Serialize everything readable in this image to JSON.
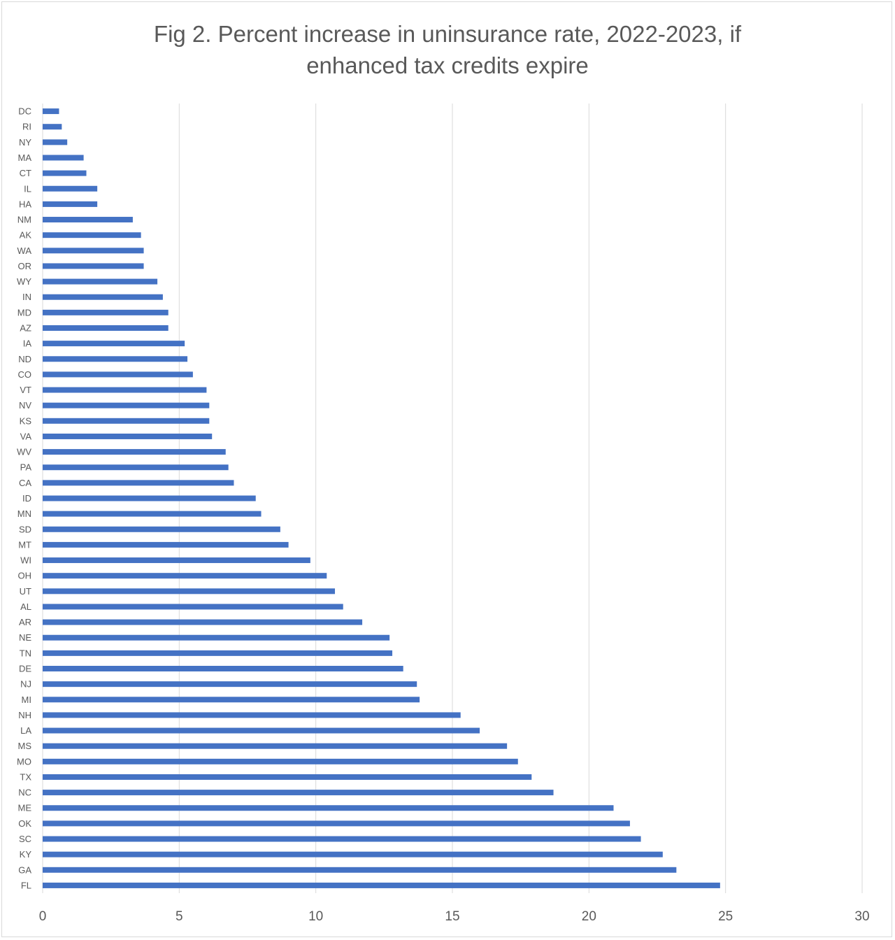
{
  "chart_data": {
    "type": "bar",
    "orientation": "horizontal",
    "title_lines": [
      "Fig 2. Percent increase in uninsurance rate, 2022-2023, if",
      "enhanced tax credits expire"
    ],
    "xlabel": "",
    "ylabel": "",
    "xlim": [
      0,
      30
    ],
    "xticks": [
      0,
      5,
      10,
      15,
      20,
      25,
      30
    ],
    "grid": "vertical",
    "legend": "none",
    "bar_color": "#4472c4",
    "categories": [
      "DC",
      "RI",
      "NY",
      "MA",
      "CT",
      "IL",
      "HA",
      "NM",
      "AK",
      "WA",
      "OR",
      "WY",
      "IN",
      "MD",
      "AZ",
      "IA",
      "ND",
      "CO",
      "VT",
      "NV",
      "KS",
      "VA",
      "WV",
      "PA",
      "CA",
      "ID",
      "MN",
      "SD",
      "MT",
      "WI",
      "OH",
      "UT",
      "AL",
      "AR",
      "NE",
      "TN",
      "DE",
      "NJ",
      "MI",
      "NH",
      "LA",
      "MS",
      "MO",
      "TX",
      "NC",
      "ME",
      "OK",
      "SC",
      "KY",
      "GA",
      "FL"
    ],
    "values": [
      0.6,
      0.7,
      0.9,
      1.5,
      1.6,
      2.0,
      2.0,
      3.3,
      3.6,
      3.7,
      3.7,
      4.2,
      4.4,
      4.6,
      4.6,
      5.2,
      5.3,
      5.5,
      6.0,
      6.1,
      6.1,
      6.2,
      6.7,
      6.8,
      7.0,
      7.8,
      8.0,
      8.7,
      9.0,
      9.8,
      10.4,
      10.7,
      11.0,
      11.7,
      12.7,
      12.8,
      13.2,
      13.7,
      13.8,
      15.3,
      16.0,
      17.0,
      17.4,
      17.9,
      18.7,
      20.9,
      21.5,
      21.9,
      22.7,
      23.2,
      24.8
    ]
  }
}
